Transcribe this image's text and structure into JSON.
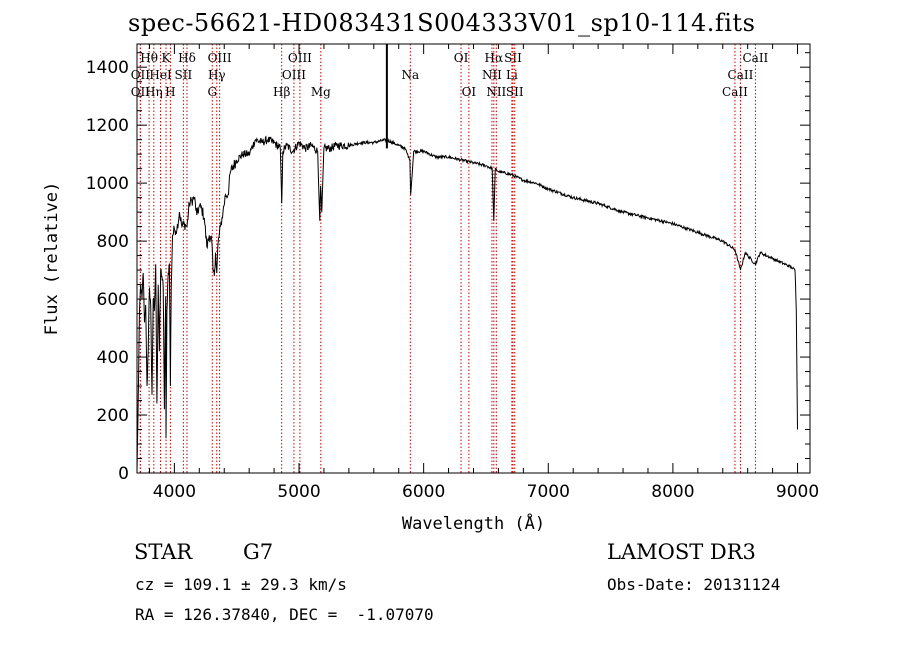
{
  "title": "spec-56621-HD083431S004333V01_sp10-114.fits",
  "info": {
    "object_class": "STAR",
    "subclass": "G7",
    "survey": "LAMOST DR3",
    "cz": "cz = 109.1 ± 29.3 km/s",
    "obs_date": "Obs-Date: 20131124",
    "coords": "RA = 126.37840, DEC =  -1.07070"
  },
  "colors": {
    "line": "#000000",
    "marker": "#cc0000"
  },
  "chart_data": {
    "type": "line",
    "xlabel": "Wavelength (Å)",
    "ylabel": "Flux (relative)",
    "xlim": [
      3700,
      9100
    ],
    "ylim": [
      0,
      1480
    ],
    "xticks": [
      4000,
      5000,
      6000,
      7000,
      8000,
      9000
    ],
    "yticks": [
      0,
      200,
      400,
      600,
      800,
      1000,
      1200,
      1400
    ],
    "series": [
      {
        "name": "flux",
        "x": [
          3700,
          3710,
          3720,
          3730,
          3740,
          3750,
          3760,
          3770,
          3780,
          3790,
          3800,
          3810,
          3820,
          3830,
          3840,
          3850,
          3860,
          3870,
          3880,
          3890,
          3900,
          3910,
          3920,
          3930,
          3933,
          3940,
          3950,
          3960,
          3968,
          3975,
          3985,
          4000,
          4020,
          4040,
          4060,
          4080,
          4101,
          4120,
          4140,
          4160,
          4180,
          4200,
          4220,
          4240,
          4260,
          4280,
          4300,
          4310,
          4320,
          4330,
          4340,
          4350,
          4370,
          4390,
          4410,
          4430,
          4450,
          4500,
          4550,
          4600,
          4650,
          4700,
          4750,
          4800,
          4850,
          4861,
          4870,
          4900,
          4950,
          5000,
          5050,
          5100,
          5150,
          5167,
          5173,
          5183,
          5200,
          5250,
          5300,
          5400,
          5500,
          5600,
          5700,
          5800,
          5850,
          5890,
          5896,
          5920,
          6000,
          6100,
          6200,
          6300,
          6400,
          6500,
          6550,
          6563,
          6575,
          6600,
          6700,
          6800,
          6900,
          7000,
          7200,
          7400,
          7600,
          7800,
          8000,
          8200,
          8400,
          8498,
          8542,
          8580,
          8662,
          8700,
          8800,
          8900,
          8950,
          8980,
          8990,
          9000
        ],
        "values": [
          0,
          250,
          560,
          650,
          600,
          690,
          520,
          580,
          300,
          420,
          640,
          580,
          270,
          600,
          560,
          720,
          240,
          650,
          420,
          700,
          680,
          640,
          220,
          610,
          120,
          560,
          690,
          720,
          300,
          650,
          820,
          840,
          840,
          900,
          850,
          860,
          850,
          930,
          940,
          950,
          890,
          920,
          910,
          880,
          780,
          820,
          800,
          700,
          680,
          760,
          690,
          790,
          850,
          900,
          960,
          960,
          1040,
          1080,
          1100,
          1100,
          1150,
          1140,
          1150,
          1140,
          1120,
          930,
          1110,
          1130,
          1110,
          1140,
          1120,
          1130,
          1110,
          870,
          990,
          900,
          1120,
          1120,
          1130,
          1130,
          1140,
          1140,
          1150,
          1130,
          1120,
          1080,
          960,
          1110,
          1110,
          1090,
          1090,
          1080,
          1070,
          1060,
          1050,
          870,
          1050,
          1040,
          1030,
          1010,
          1000,
          980,
          950,
          930,
          900,
          880,
          860,
          830,
          800,
          770,
          700,
          760,
          720,
          760,
          740,
          720,
          710,
          700,
          560,
          150
        ]
      }
    ],
    "line_markers": [
      {
        "label": "Hθ",
        "wave": 3797,
        "row": 1
      },
      {
        "label": "K",
        "wave": 3933,
        "row": 1
      },
      {
        "label": "Hδ",
        "wave": 4101,
        "row": 1
      },
      {
        "label": "OIII",
        "wave": 4363,
        "row": 1
      },
      {
        "label": "OIII",
        "wave": 5007,
        "row": 1
      },
      {
        "label": "OI",
        "wave": 6300,
        "row": 1
      },
      {
        "label": "Hα",
        "wave": 6563,
        "row": 1
      },
      {
        "label": "SII",
        "wave": 6717,
        "row": 1
      },
      {
        "label": "CaII",
        "wave": 8662,
        "row": 1
      },
      {
        "label": "OII",
        "wave": 3727,
        "row": 2
      },
      {
        "label": "HeI",
        "wave": 3889,
        "row": 2
      },
      {
        "label": "SII",
        "wave": 4072,
        "row": 2
      },
      {
        "label": "Hγ",
        "wave": 4340,
        "row": 2
      },
      {
        "label": "OIII",
        "wave": 4959,
        "row": 2
      },
      {
        "label": "Na",
        "wave": 5893,
        "row": 2
      },
      {
        "label": "NII",
        "wave": 6548,
        "row": 2
      },
      {
        "label": "Li",
        "wave": 6708,
        "row": 2
      },
      {
        "label": "CaII",
        "wave": 8542,
        "row": 2
      },
      {
        "label": "OII",
        "wave": 3727,
        "row": 3
      },
      {
        "label": "Hη",
        "wave": 3835,
        "row": 3
      },
      {
        "label": "H",
        "wave": 3968,
        "row": 3
      },
      {
        "label": "G",
        "wave": 4304,
        "row": 3
      },
      {
        "label": "Hβ",
        "wave": 4861,
        "row": 3
      },
      {
        "label": "Mg",
        "wave": 5175,
        "row": 3
      },
      {
        "label": "OI",
        "wave": 6363,
        "row": 3
      },
      {
        "label": "NII",
        "wave": 6583,
        "row": 3
      },
      {
        "label": "SII",
        "wave": 6731,
        "row": 3
      },
      {
        "label": "CaII",
        "wave": 8498,
        "row": 3
      }
    ]
  }
}
